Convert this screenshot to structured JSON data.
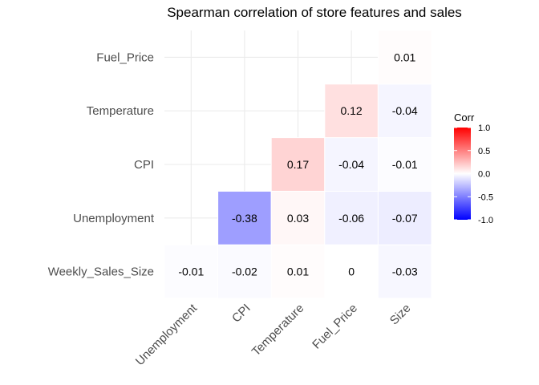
{
  "chart_data": {
    "type": "heatmap",
    "title": "Spearman correlation of store features and sales",
    "x_categories": [
      "Unemployment",
      "CPI",
      "Temperature",
      "Fuel_Price",
      "Size"
    ],
    "y_categories": [
      "Weekly_Sales_Size",
      "Unemployment",
      "CPI",
      "Temperature",
      "Fuel_Price"
    ],
    "cells": [
      {
        "x": "Unemployment",
        "y": "Weekly_Sales_Size",
        "value": -0.01
      },
      {
        "x": "CPI",
        "y": "Weekly_Sales_Size",
        "value": -0.02
      },
      {
        "x": "Temperature",
        "y": "Weekly_Sales_Size",
        "value": 0.01
      },
      {
        "x": "Fuel_Price",
        "y": "Weekly_Sales_Size",
        "value": 0
      },
      {
        "x": "Size",
        "y": "Weekly_Sales_Size",
        "value": -0.03
      },
      {
        "x": "CPI",
        "y": "Unemployment",
        "value": -0.38
      },
      {
        "x": "Temperature",
        "y": "Unemployment",
        "value": 0.03
      },
      {
        "x": "Fuel_Price",
        "y": "Unemployment",
        "value": -0.06
      },
      {
        "x": "Size",
        "y": "Unemployment",
        "value": -0.07
      },
      {
        "x": "Temperature",
        "y": "CPI",
        "value": 0.17
      },
      {
        "x": "Fuel_Price",
        "y": "CPI",
        "value": -0.04
      },
      {
        "x": "Size",
        "y": "CPI",
        "value": -0.01
      },
      {
        "x": "Fuel_Price",
        "y": "Temperature",
        "value": 0.12
      },
      {
        "x": "Size",
        "y": "Temperature",
        "value": -0.04
      },
      {
        "x": "Size",
        "y": "Fuel_Price",
        "value": 0.01
      }
    ],
    "legend": {
      "title": "Corr",
      "range": [
        -1.0,
        1.0
      ],
      "ticks": [
        "1.0",
        "0.5",
        "0.0",
        "-0.5",
        "-1.0"
      ],
      "colors": {
        "low": "#0000ff",
        "mid": "#ffffff",
        "high": "#ff0000"
      },
      "placement": "right"
    },
    "grid": true
  }
}
